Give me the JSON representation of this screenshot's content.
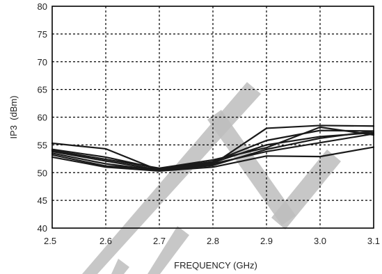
{
  "chart_data": {
    "type": "line",
    "title": "",
    "xlabel": "FREQUENCY (GHz)",
    "ylabel": "IP3  (dBm)",
    "xlim": [
      2.5,
      3.1
    ],
    "ylim": [
      40,
      80
    ],
    "x_ticks": [
      "2.5",
      "2.6",
      "2.7",
      "2.8",
      "2.9",
      "3.0",
      "3.1"
    ],
    "y_ticks": [
      "40",
      "45",
      "50",
      "55",
      "60",
      "65",
      "70",
      "75",
      "80"
    ],
    "grid": true,
    "x": [
      2.5,
      2.6,
      2.7,
      2.8,
      2.9,
      3.0,
      3.1
    ],
    "series": [
      {
        "values": [
          55.3,
          54.3,
          50.4,
          51.5,
          58.0,
          58.5,
          58.4
        ]
      },
      {
        "values": [
          54.2,
          52.8,
          50.7,
          52.0,
          55.8,
          57.6,
          57.5
        ]
      },
      {
        "values": [
          53.8,
          52.1,
          50.5,
          51.8,
          55.0,
          56.5,
          57.2
        ]
      },
      {
        "values": [
          53.5,
          51.6,
          50.4,
          51.3,
          54.2,
          56.2,
          57.5
        ]
      },
      {
        "values": [
          53.2,
          51.2,
          50.6,
          51.6,
          53.8,
          55.4,
          57.0
        ]
      },
      {
        "values": [
          52.8,
          51.0,
          50.3,
          51.0,
          53.0,
          52.9,
          54.6
        ]
      },
      {
        "values": [
          54.0,
          52.4,
          50.8,
          52.3,
          54.5,
          58.2,
          56.8
        ]
      }
    ]
  }
}
